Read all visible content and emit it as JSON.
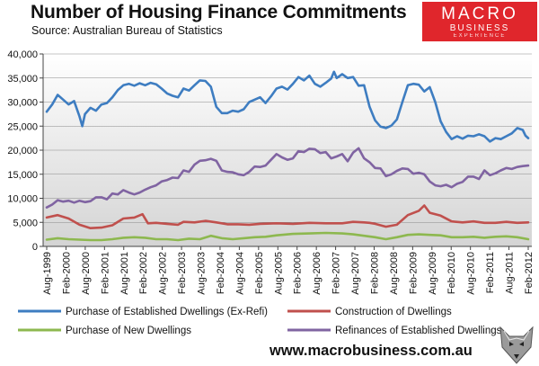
{
  "title": "Number of Housing  Finance Commitments",
  "source": "Source: Australian Bureau of Statistics",
  "logo": {
    "line1": "MACRO",
    "line2": "BUSINESS",
    "line3": "EXPERIENCE"
  },
  "footer": "www.macrobusiness.com.au",
  "chart_data": {
    "type": "line",
    "title": "Number of Housing  Finance Commitments",
    "ylim": [
      0,
      40000
    ],
    "yticks": [
      "0",
      "5,000",
      "10,000",
      "15,000",
      "20,000",
      "25,000",
      "30,000",
      "35,000",
      "40,000"
    ],
    "xticks": [
      "Aug-1999",
      "Feb-2000",
      "Aug-2000",
      "Feb-2001",
      "Aug-2001",
      "Feb-2002",
      "Aug-2002",
      "Feb-2003",
      "Aug-2003",
      "Feb-2004",
      "Aug-2004",
      "Feb-2005",
      "Aug-2005",
      "Feb-2006",
      "Aug-2006",
      "Feb-2007",
      "Aug-2007",
      "Feb-2008",
      "Aug-2008",
      "Feb-2009",
      "Aug-2009",
      "Feb-2010",
      "Aug-2010",
      "Feb-2011",
      "Aug-2011",
      "Feb-2012"
    ],
    "x_start": "Aug-1999",
    "x_end": "Feb-2012",
    "grid": true,
    "legend_position": "bottom",
    "series": [
      {
        "name": "Purchase of Established Dwellings (Ex-Refi)",
        "color": "#3e7dc1",
        "values": [
          [
            0,
            28000
          ],
          [
            2,
            29500
          ],
          [
            4,
            31500
          ],
          [
            6,
            30500
          ],
          [
            8,
            29500
          ],
          [
            10,
            30200
          ],
          [
            12,
            27000
          ],
          [
            13,
            25000
          ],
          [
            14,
            27500
          ],
          [
            16,
            28800
          ],
          [
            18,
            28200
          ],
          [
            20,
            29500
          ],
          [
            22,
            29800
          ],
          [
            24,
            31000
          ],
          [
            26,
            32500
          ],
          [
            28,
            33500
          ],
          [
            30,
            33800
          ],
          [
            32,
            33400
          ],
          [
            34,
            33900
          ],
          [
            36,
            33500
          ],
          [
            38,
            34000
          ],
          [
            40,
            33700
          ],
          [
            42,
            32800
          ],
          [
            44,
            31800
          ],
          [
            46,
            31300
          ],
          [
            48,
            31000
          ],
          [
            50,
            32800
          ],
          [
            52,
            32400
          ],
          [
            54,
            33500
          ],
          [
            56,
            34500
          ],
          [
            58,
            34400
          ],
          [
            60,
            33200
          ],
          [
            62,
            29000
          ],
          [
            64,
            27700
          ],
          [
            66,
            27700
          ],
          [
            68,
            28200
          ],
          [
            70,
            28000
          ],
          [
            72,
            28500
          ],
          [
            74,
            30000
          ],
          [
            76,
            30500
          ],
          [
            78,
            31000
          ],
          [
            80,
            29800
          ],
          [
            82,
            31200
          ],
          [
            84,
            32800
          ],
          [
            86,
            33200
          ],
          [
            88,
            32600
          ],
          [
            90,
            33800
          ],
          [
            92,
            35200
          ],
          [
            94,
            34500
          ],
          [
            96,
            35500
          ],
          [
            98,
            33800
          ],
          [
            100,
            33200
          ],
          [
            102,
            34000
          ],
          [
            104,
            34900
          ],
          [
            105,
            36300
          ],
          [
            106,
            35000
          ],
          [
            108,
            35800
          ],
          [
            110,
            35000
          ],
          [
            112,
            35200
          ],
          [
            114,
            33400
          ],
          [
            116,
            33500
          ],
          [
            118,
            29000
          ],
          [
            120,
            26200
          ],
          [
            122,
            24900
          ],
          [
            124,
            24600
          ],
          [
            126,
            25100
          ],
          [
            128,
            26400
          ],
          [
            130,
            30000
          ],
          [
            132,
            33500
          ],
          [
            134,
            33800
          ],
          [
            136,
            33600
          ],
          [
            138,
            32200
          ],
          [
            140,
            33100
          ],
          [
            142,
            30000
          ],
          [
            144,
            26000
          ],
          [
            146,
            23800
          ],
          [
            148,
            22300
          ],
          [
            150,
            22900
          ],
          [
            152,
            22400
          ],
          [
            154,
            23000
          ],
          [
            156,
            22900
          ],
          [
            158,
            23300
          ],
          [
            160,
            22900
          ],
          [
            162,
            21800
          ],
          [
            164,
            22500
          ],
          [
            166,
            22300
          ],
          [
            168,
            22900
          ],
          [
            170,
            23500
          ],
          [
            172,
            24600
          ],
          [
            174,
            24200
          ],
          [
            175,
            23000
          ],
          [
            176,
            22500
          ]
        ]
      },
      {
        "name": "Construction of Dwellings",
        "color": "#c0504d",
        "values": [
          [
            0,
            6000
          ],
          [
            4,
            6500
          ],
          [
            8,
            5800
          ],
          [
            12,
            4500
          ],
          [
            16,
            3800
          ],
          [
            20,
            3900
          ],
          [
            24,
            4400
          ],
          [
            28,
            5800
          ],
          [
            32,
            6000
          ],
          [
            35,
            6700
          ],
          [
            37,
            4800
          ],
          [
            40,
            4900
          ],
          [
            44,
            4700
          ],
          [
            48,
            4500
          ],
          [
            50,
            5100
          ],
          [
            54,
            5000
          ],
          [
            58,
            5300
          ],
          [
            62,
            5000
          ],
          [
            66,
            4600
          ],
          [
            70,
            4600
          ],
          [
            74,
            4500
          ],
          [
            78,
            4700
          ],
          [
            84,
            4800
          ],
          [
            90,
            4700
          ],
          [
            96,
            4900
          ],
          [
            102,
            4800
          ],
          [
            108,
            4800
          ],
          [
            112,
            5100
          ],
          [
            116,
            5000
          ],
          [
            118,
            4900
          ],
          [
            120,
            4700
          ],
          [
            124,
            4100
          ],
          [
            128,
            4500
          ],
          [
            132,
            6500
          ],
          [
            136,
            7400
          ],
          [
            138,
            8500
          ],
          [
            140,
            7000
          ],
          [
            144,
            6400
          ],
          [
            148,
            5200
          ],
          [
            152,
            5000
          ],
          [
            156,
            5200
          ],
          [
            160,
            4900
          ],
          [
            164,
            4900
          ],
          [
            168,
            5100
          ],
          [
            172,
            4900
          ],
          [
            176,
            5000
          ]
        ]
      },
      {
        "name": "Purchase of New Dwellings",
        "color": "#8db84f",
        "values": [
          [
            0,
            1400
          ],
          [
            4,
            1700
          ],
          [
            8,
            1500
          ],
          [
            12,
            1400
          ],
          [
            16,
            1300
          ],
          [
            20,
            1300
          ],
          [
            24,
            1500
          ],
          [
            28,
            1800
          ],
          [
            32,
            1900
          ],
          [
            36,
            1800
          ],
          [
            40,
            1500
          ],
          [
            44,
            1500
          ],
          [
            48,
            1300
          ],
          [
            52,
            1600
          ],
          [
            56,
            1500
          ],
          [
            60,
            2200
          ],
          [
            64,
            1700
          ],
          [
            68,
            1500
          ],
          [
            72,
            1700
          ],
          [
            76,
            1900
          ],
          [
            80,
            2000
          ],
          [
            84,
            2300
          ],
          [
            90,
            2600
          ],
          [
            96,
            2700
          ],
          [
            102,
            2800
          ],
          [
            108,
            2700
          ],
          [
            112,
            2500
          ],
          [
            116,
            2200
          ],
          [
            120,
            1900
          ],
          [
            124,
            1500
          ],
          [
            128,
            1900
          ],
          [
            132,
            2400
          ],
          [
            136,
            2500
          ],
          [
            140,
            2400
          ],
          [
            144,
            2300
          ],
          [
            148,
            1900
          ],
          [
            152,
            1900
          ],
          [
            156,
            2000
          ],
          [
            160,
            1800
          ],
          [
            162,
            1900
          ],
          [
            164,
            2000
          ],
          [
            168,
            2100
          ],
          [
            172,
            1900
          ],
          [
            176,
            1500
          ]
        ]
      },
      {
        "name": "Refinances of Established Dwellings",
        "color": "#8064a2",
        "values": [
          [
            0,
            8100
          ],
          [
            2,
            8700
          ],
          [
            4,
            9600
          ],
          [
            6,
            9300
          ],
          [
            8,
            9500
          ],
          [
            10,
            9100
          ],
          [
            12,
            9500
          ],
          [
            14,
            9200
          ],
          [
            16,
            9400
          ],
          [
            18,
            10200
          ],
          [
            20,
            10200
          ],
          [
            22,
            9800
          ],
          [
            24,
            11000
          ],
          [
            26,
            10800
          ],
          [
            28,
            11700
          ],
          [
            30,
            11200
          ],
          [
            32,
            10800
          ],
          [
            34,
            11200
          ],
          [
            36,
            11800
          ],
          [
            38,
            12300
          ],
          [
            40,
            12700
          ],
          [
            42,
            13500
          ],
          [
            44,
            13800
          ],
          [
            46,
            14300
          ],
          [
            48,
            14200
          ],
          [
            50,
            15800
          ],
          [
            52,
            15500
          ],
          [
            54,
            17000
          ],
          [
            56,
            17800
          ],
          [
            58,
            17900
          ],
          [
            60,
            18200
          ],
          [
            62,
            17800
          ],
          [
            64,
            15800
          ],
          [
            66,
            15500
          ],
          [
            68,
            15400
          ],
          [
            70,
            15000
          ],
          [
            72,
            14800
          ],
          [
            74,
            15500
          ],
          [
            76,
            16600
          ],
          [
            78,
            16500
          ],
          [
            80,
            16800
          ],
          [
            82,
            18000
          ],
          [
            84,
            19200
          ],
          [
            86,
            18500
          ],
          [
            88,
            18000
          ],
          [
            90,
            18300
          ],
          [
            92,
            19800
          ],
          [
            94,
            19600
          ],
          [
            96,
            20300
          ],
          [
            98,
            20200
          ],
          [
            100,
            19400
          ],
          [
            102,
            19600
          ],
          [
            104,
            18300
          ],
          [
            106,
            18700
          ],
          [
            108,
            19200
          ],
          [
            110,
            17700
          ],
          [
            112,
            19500
          ],
          [
            114,
            20400
          ],
          [
            116,
            18300
          ],
          [
            118,
            17500
          ],
          [
            120,
            16300
          ],
          [
            122,
            16200
          ],
          [
            124,
            14600
          ],
          [
            126,
            15000
          ],
          [
            128,
            15700
          ],
          [
            130,
            16200
          ],
          [
            132,
            16100
          ],
          [
            134,
            15100
          ],
          [
            136,
            15300
          ],
          [
            138,
            15000
          ],
          [
            140,
            13500
          ],
          [
            142,
            12700
          ],
          [
            144,
            12500
          ],
          [
            146,
            12800
          ],
          [
            148,
            12300
          ],
          [
            150,
            13000
          ],
          [
            152,
            13400
          ],
          [
            154,
            14500
          ],
          [
            156,
            14500
          ],
          [
            158,
            14000
          ],
          [
            160,
            15800
          ],
          [
            162,
            14800
          ],
          [
            164,
            15200
          ],
          [
            166,
            15800
          ],
          [
            168,
            16300
          ],
          [
            170,
            16100
          ],
          [
            172,
            16500
          ],
          [
            174,
            16700
          ],
          [
            176,
            16800
          ]
        ]
      }
    ]
  }
}
